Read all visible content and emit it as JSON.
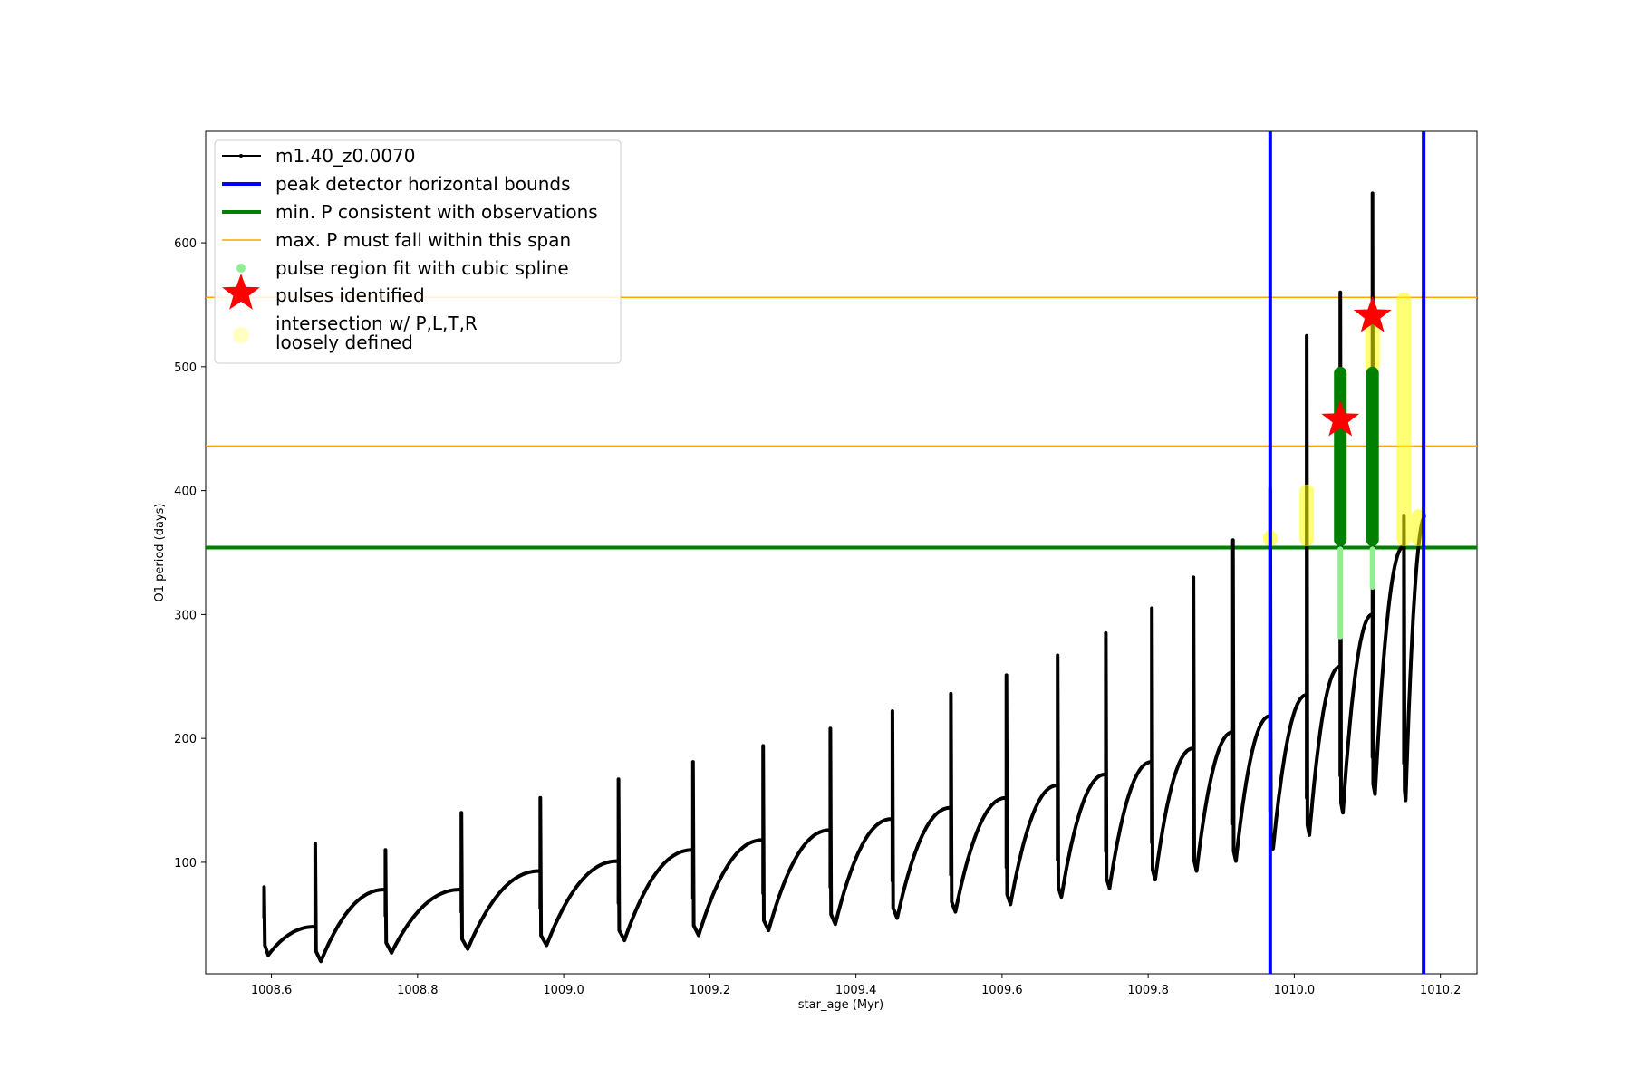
{
  "chart_data": {
    "type": "line",
    "title": "",
    "xlabel": "star_age (Myr)",
    "ylabel": "O1 period (days)",
    "xlim": [
      1008.51,
      1010.25
    ],
    "ylim": [
      10,
      690
    ],
    "x_ticks": [
      1008.6,
      1008.8,
      1009.0,
      1009.2,
      1009.4,
      1009.6,
      1009.8,
      1010.0,
      1010.2
    ],
    "x_tick_labels": [
      "1008.6",
      "1008.8",
      "1009.0",
      "1009.2",
      "1009.4",
      "1009.6",
      "1009.8",
      "1010.0",
      "1010.2"
    ],
    "y_ticks": [
      100,
      200,
      300,
      400,
      500,
      600
    ],
    "y_tick_labels": [
      "100",
      "200",
      "300",
      "400",
      "500",
      "600"
    ],
    "grid": false,
    "legend_position": "top-left",
    "colors": {
      "series": "#000000",
      "bounds": "#0000ff",
      "min_p": "#008000",
      "max_p": "#ffa500",
      "spline": "#90ee90",
      "spline_dark": "#008000",
      "pulses": "#ff0000",
      "loose": "#ffff00"
    },
    "series": [
      {
        "name": "m1.40_z0.0070",
        "pulses": [
          {
            "start": 1008.59,
            "trough": 25,
            "peak": 48,
            "end": 1008.66,
            "spike": 80
          },
          {
            "start": 1008.66,
            "trough": 20,
            "peak": 78,
            "end": 1008.756,
            "spike": 115
          },
          {
            "start": 1008.756,
            "trough": 27,
            "peak": 78,
            "end": 1008.86,
            "spike": 110
          },
          {
            "start": 1008.86,
            "trough": 30,
            "peak": 93,
            "end": 1008.968,
            "spike": 140
          },
          {
            "start": 1008.968,
            "trough": 33,
            "peak": 101,
            "end": 1009.075,
            "spike": 152
          },
          {
            "start": 1009.075,
            "trough": 37,
            "peak": 110,
            "end": 1009.177,
            "spike": 167
          },
          {
            "start": 1009.177,
            "trough": 41,
            "peak": 118,
            "end": 1009.273,
            "spike": 181
          },
          {
            "start": 1009.273,
            "trough": 45,
            "peak": 126,
            "end": 1009.365,
            "spike": 194
          },
          {
            "start": 1009.365,
            "trough": 50,
            "peak": 135,
            "end": 1009.45,
            "spike": 208
          },
          {
            "start": 1009.45,
            "trough": 55,
            "peak": 144,
            "end": 1009.53,
            "spike": 222
          },
          {
            "start": 1009.53,
            "trough": 60,
            "peak": 152,
            "end": 1009.606,
            "spike": 236
          },
          {
            "start": 1009.606,
            "trough": 66,
            "peak": 162,
            "end": 1009.676,
            "spike": 251
          },
          {
            "start": 1009.676,
            "trough": 72,
            "peak": 171,
            "end": 1009.742,
            "spike": 267
          },
          {
            "start": 1009.742,
            "trough": 79,
            "peak": 181,
            "end": 1009.805,
            "spike": 285
          },
          {
            "start": 1009.805,
            "trough": 86,
            "peak": 192,
            "end": 1009.862,
            "spike": 305
          },
          {
            "start": 1009.862,
            "trough": 93,
            "peak": 205,
            "end": 1009.916,
            "spike": 330
          },
          {
            "start": 1009.916,
            "trough": 101,
            "peak": 218,
            "end": 1009.967,
            "spike": 360
          },
          {
            "start": 1009.967,
            "trough": 111,
            "peak": 235,
            "end": 1010.017,
            "spike": 402
          },
          {
            "start": 1010.017,
            "trough": 122,
            "peak": 258,
            "end": 1010.063,
            "spike": 525
          },
          {
            "start": 1010.063,
            "trough": 140,
            "peak": 300,
            "end": 1010.107,
            "spike": 560
          },
          {
            "start": 1010.107,
            "trough": 155,
            "peak": 355,
            "end": 1010.15,
            "spike": 640
          },
          {
            "start": 1010.15,
            "trough": 150,
            "peak": 380,
            "end": 1010.18,
            "spike": 380
          }
        ]
      }
    ],
    "peak_bounds_x": [
      1009.967,
      1010.177
    ],
    "min_p": 354,
    "max_p_span": [
      436,
      556
    ],
    "pulses_identified": [
      {
        "x": 1010.063,
        "y": 457
      },
      {
        "x": 1010.107,
        "y": 541
      }
    ],
    "spline_regions": [
      {
        "x": 1010.063,
        "y_min": 280,
        "y_max": 500,
        "green_from": 355
      },
      {
        "x": 1010.107,
        "y_min": 320,
        "y_max": 500,
        "green_from": 355
      }
    ],
    "loose_regions": [
      {
        "x": 1009.967,
        "y_min": 355,
        "y_max": 368
      },
      {
        "x": 1010.017,
        "y_min": 355,
        "y_max": 405
      },
      {
        "x": 1010.107,
        "y_min": 495,
        "y_max": 545
      },
      {
        "x": 1010.15,
        "y_min": 355,
        "y_max": 560
      },
      {
        "x": 1010.17,
        "y_min": 355,
        "y_max": 385
      }
    ],
    "legend": [
      {
        "label": "m1.40_z0.0070",
        "kind": "line-marker",
        "color": "#000000"
      },
      {
        "label": "peak detector horizontal bounds",
        "kind": "line",
        "color": "#0000ff"
      },
      {
        "label": "min. P consistent with observations",
        "kind": "line",
        "color": "#008000"
      },
      {
        "label": "max. P must fall within this span",
        "kind": "thin-line",
        "color": "#ffa500"
      },
      {
        "label": "pulse region fit with cubic spline",
        "kind": "dot",
        "color": "#90ee90"
      },
      {
        "label": "pulses identified",
        "kind": "star",
        "color": "#ff0000"
      },
      {
        "label": "intersection w/ P,L,T,R",
        "label2": "loosely defined",
        "kind": "big-dot",
        "color": "#ffff99"
      }
    ]
  }
}
